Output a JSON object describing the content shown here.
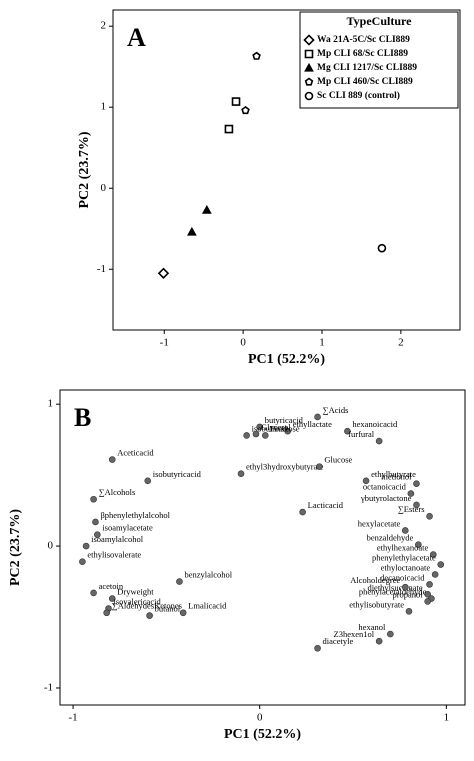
{
  "chart_data": [
    {
      "type": "scatter",
      "panel": "A",
      "xlabel": "PC1 (52.2%)",
      "ylabel": "PC2 (23.7%)",
      "xlim": [
        -1.65,
        2.75
      ],
      "ylim": [
        -1.75,
        2.2
      ],
      "xticks": [
        -1,
        0,
        1,
        2
      ],
      "yticks": [
        -1,
        0,
        1,
        2
      ],
      "legend_title": "TypeCulture",
      "legend": "upper right",
      "series": [
        {
          "name": "Wa 21A-5C/Sc CLI889",
          "marker": "diamond",
          "color": "#000000",
          "x": [
            -1.01
          ],
          "values": [
            -1.05
          ]
        },
        {
          "name": "Mp CLI 68/Sc CLI889",
          "marker": "square",
          "color": "#000000",
          "x": [
            -0.09,
            -0.18
          ],
          "values": [
            1.07,
            0.73
          ]
        },
        {
          "name": "Mg CLI 1217/Sc CLI889",
          "marker": "triangle",
          "color": "#000000",
          "x": [
            -0.46,
            -0.65
          ],
          "values": [
            -0.27,
            -0.54
          ]
        },
        {
          "name": "Mp CLI 460/Sc CLI889",
          "marker": "pentagon",
          "color": "#000000",
          "x": [
            0.17,
            0.03
          ],
          "values": [
            1.63,
            0.96
          ]
        },
        {
          "name": "Sc CLI 889 (control)",
          "marker": "circle",
          "color": "#000000",
          "x": [
            1.76
          ],
          "values": [
            -0.74
          ]
        }
      ]
    },
    {
      "type": "scatter",
      "panel": "B",
      "xlabel": "PC1 (52.2%)",
      "ylabel": "PC2 (23.7%)",
      "xlim": [
        -1.07,
        1.1
      ],
      "ylim": [
        -1.12,
        1.1
      ],
      "xticks": [
        -1,
        0,
        1
      ],
      "yticks": [
        -1,
        0,
        1
      ],
      "series": [
        {
          "color": "#666666",
          "marker": "circle",
          "point_labels": [
            "∑Acids",
            "hexanoicacid",
            "ethyllactate",
            "furfural",
            "butyricacid",
            "isobutanol",
            "Fructose",
            "Glycerol",
            "ethyl3hydroxybutyrate",
            "Glucose",
            "ethylbutyrate",
            "metionol",
            "octanoicacid",
            "γbutyrolactone",
            "∑Esters",
            "hexylacetate",
            "benzaldehyde",
            "ethylhexanoate",
            "phenylethylacetate",
            "ethyloctanoate",
            "decanoicacid",
            "diethylsuccinate",
            "phenylacetaldehyde",
            "propanol",
            "Alcoholdegree",
            "ethylisobutyrate",
            "hexanol",
            "Z3hexen1ol",
            "diacetyle",
            "Lacticacid",
            "isobutyricacid",
            "Aceticacid",
            "∑Alcohols",
            "βphenylethylalcohol",
            "isoamylacetate",
            "isoamylalcohol",
            "ethylisovalerate",
            "acetoin",
            "Dryweight",
            "isovalericacid",
            "∑AldehydesKetones",
            "butanol",
            "benzylalcohol",
            "Lmalicacid"
          ],
          "x": [
            0.31,
            0.47,
            0.15,
            0.64,
            0.0,
            -0.07,
            0.03,
            -0.02,
            -0.1,
            0.32,
            0.57,
            0.84,
            0.81,
            0.84,
            0.91,
            0.78,
            0.85,
            0.93,
            0.97,
            0.94,
            0.91,
            0.9,
            0.92,
            0.9,
            0.78,
            0.8,
            0.7,
            0.64,
            0.31,
            0.23,
            -0.6,
            -0.79,
            -0.89,
            -0.88,
            -0.87,
            -0.93,
            -0.95,
            -0.89,
            -0.79,
            -0.81,
            -0.82,
            -0.59,
            -0.43,
            -0.41
          ],
          "values": [
            0.91,
            0.81,
            0.81,
            0.74,
            0.84,
            0.78,
            0.78,
            0.79,
            0.51,
            0.56,
            0.46,
            0.44,
            0.37,
            0.29,
            0.21,
            0.11,
            0.01,
            -0.06,
            -0.13,
            -0.2,
            -0.27,
            -0.34,
            -0.37,
            -0.39,
            -0.29,
            -0.46,
            -0.62,
            -0.67,
            -0.72,
            0.24,
            0.46,
            0.61,
            0.33,
            0.17,
            0.08,
            0.0,
            -0.11,
            -0.33,
            -0.37,
            -0.44,
            -0.47,
            -0.49,
            -0.25,
            -0.47
          ]
        }
      ]
    }
  ]
}
